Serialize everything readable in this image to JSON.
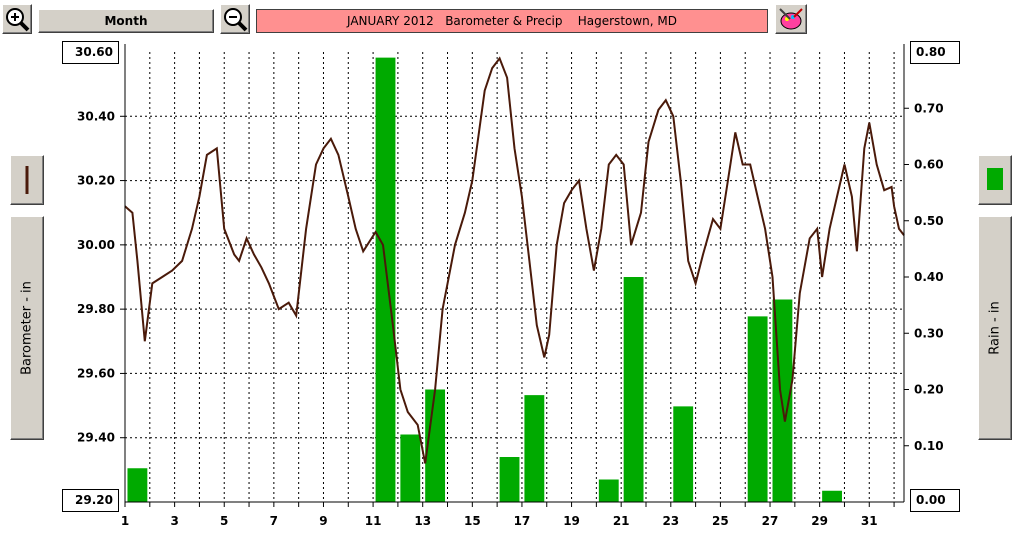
{
  "toolbar": {
    "zoom_in_icon": "zoom-in-magnifier",
    "zoom_out_icon": "zoom-out-magnifier",
    "range_label": "Month",
    "title": "JANUARY 2012   Barometer & Precip    Hagerstown, MD",
    "title_bg": "#ff9090",
    "paint_icon": "paint-palette"
  },
  "left_axis": {
    "label": "Barometer - in",
    "top_value": "30.60",
    "bottom_value": "29.20",
    "legend_color": "#4a1a0a"
  },
  "right_axis": {
    "label": "Rain - in",
    "top_value": "0.80",
    "bottom_value": "0.00",
    "legend_color": "#00aa00"
  },
  "chart_data": {
    "type": "bar+line",
    "title": "JANUARY 2012   Barometer & Precip    Hagerstown, MD",
    "xlabel": "",
    "x_ticks": [
      "1",
      "3",
      "5",
      "7",
      "9",
      "11",
      "13",
      "15",
      "17",
      "19",
      "21",
      "23",
      "25",
      "27",
      "29",
      "31"
    ],
    "xlim": [
      1,
      32
    ],
    "grid": true,
    "series": [
      {
        "name": "Barometer - in",
        "type": "line",
        "axis": "left",
        "color": "#4a1a0a",
        "ylim": [
          29.2,
          30.6
        ],
        "yticks": [
          "30.60",
          "30.40",
          "30.20",
          "30.00",
          "29.80",
          "29.60",
          "29.40",
          "29.20"
        ],
        "points": [
          [
            1.0,
            30.12
          ],
          [
            1.3,
            30.1
          ],
          [
            1.5,
            29.95
          ],
          [
            1.8,
            29.7
          ],
          [
            2.1,
            29.88
          ],
          [
            2.5,
            29.9
          ],
          [
            2.9,
            29.92
          ],
          [
            3.3,
            29.95
          ],
          [
            3.7,
            30.05
          ],
          [
            4.0,
            30.15
          ],
          [
            4.3,
            30.28
          ],
          [
            4.7,
            30.3
          ],
          [
            5.0,
            30.05
          ],
          [
            5.4,
            29.97
          ],
          [
            5.6,
            29.95
          ],
          [
            5.9,
            30.02
          ],
          [
            6.2,
            29.97
          ],
          [
            6.5,
            29.93
          ],
          [
            6.8,
            29.88
          ],
          [
            7.2,
            29.8
          ],
          [
            7.6,
            29.82
          ],
          [
            7.9,
            29.78
          ],
          [
            8.3,
            30.05
          ],
          [
            8.7,
            30.25
          ],
          [
            9.0,
            30.3
          ],
          [
            9.3,
            30.33
          ],
          [
            9.6,
            30.28
          ],
          [
            10.0,
            30.15
          ],
          [
            10.3,
            30.05
          ],
          [
            10.6,
            29.98
          ],
          [
            11.1,
            30.04
          ],
          [
            11.4,
            30.0
          ],
          [
            11.8,
            29.75
          ],
          [
            12.1,
            29.55
          ],
          [
            12.4,
            29.48
          ],
          [
            12.8,
            29.44
          ],
          [
            13.1,
            29.32
          ],
          [
            13.5,
            29.55
          ],
          [
            13.8,
            29.8
          ],
          [
            14.3,
            30.0
          ],
          [
            14.7,
            30.1
          ],
          [
            15.0,
            30.2
          ],
          [
            15.5,
            30.48
          ],
          [
            15.8,
            30.55
          ],
          [
            16.1,
            30.58
          ],
          [
            16.4,
            30.52
          ],
          [
            16.7,
            30.3
          ],
          [
            17.0,
            30.15
          ],
          [
            17.3,
            29.95
          ],
          [
            17.6,
            29.75
          ],
          [
            17.9,
            29.65
          ],
          [
            18.1,
            29.72
          ],
          [
            18.4,
            30.0
          ],
          [
            18.7,
            30.13
          ],
          [
            19.0,
            30.17
          ],
          [
            19.3,
            30.2
          ],
          [
            19.6,
            30.05
          ],
          [
            19.9,
            29.92
          ],
          [
            20.2,
            30.05
          ],
          [
            20.5,
            30.25
          ],
          [
            20.8,
            30.28
          ],
          [
            21.1,
            30.25
          ],
          [
            21.4,
            30.0
          ],
          [
            21.8,
            30.1
          ],
          [
            22.1,
            30.32
          ],
          [
            22.5,
            30.42
          ],
          [
            22.8,
            30.45
          ],
          [
            23.1,
            30.4
          ],
          [
            23.4,
            30.2
          ],
          [
            23.7,
            29.95
          ],
          [
            24.0,
            29.88
          ],
          [
            24.3,
            29.97
          ],
          [
            24.7,
            30.08
          ],
          [
            25.0,
            30.05
          ],
          [
            25.3,
            30.2
          ],
          [
            25.6,
            30.35
          ],
          [
            25.9,
            30.25
          ],
          [
            26.2,
            30.25
          ],
          [
            26.5,
            30.15
          ],
          [
            26.8,
            30.05
          ],
          [
            27.1,
            29.9
          ],
          [
            27.4,
            29.55
          ],
          [
            27.6,
            29.45
          ],
          [
            27.9,
            29.58
          ],
          [
            28.2,
            29.85
          ],
          [
            28.6,
            30.02
          ],
          [
            28.9,
            30.05
          ],
          [
            29.1,
            29.9
          ],
          [
            29.4,
            30.05
          ],
          [
            29.7,
            30.15
          ],
          [
            30.0,
            30.25
          ],
          [
            30.3,
            30.15
          ],
          [
            30.5,
            29.98
          ],
          [
            30.8,
            30.3
          ],
          [
            31.0,
            30.38
          ],
          [
            31.3,
            30.25
          ],
          [
            31.6,
            30.17
          ],
          [
            31.9,
            30.18
          ],
          [
            32.0,
            30.12
          ],
          [
            32.2,
            30.05
          ],
          [
            32.4,
            30.03
          ]
        ]
      },
      {
        "name": "Rain - in",
        "type": "bar",
        "axis": "right",
        "color": "#00aa00",
        "ylim": [
          0.0,
          0.8
        ],
        "yticks": [
          "0.80",
          "0.70",
          "0.60",
          "0.50",
          "0.40",
          "0.30",
          "0.20",
          "0.10",
          "0.00"
        ],
        "days": [
          1,
          11,
          12,
          13,
          16,
          17,
          20,
          21,
          23,
          26,
          27,
          29
        ],
        "values": [
          0.06,
          0.79,
          0.12,
          0.2,
          0.08,
          0.19,
          0.04,
          0.4,
          0.17,
          0.33,
          0.36,
          0.02
        ]
      }
    ]
  }
}
